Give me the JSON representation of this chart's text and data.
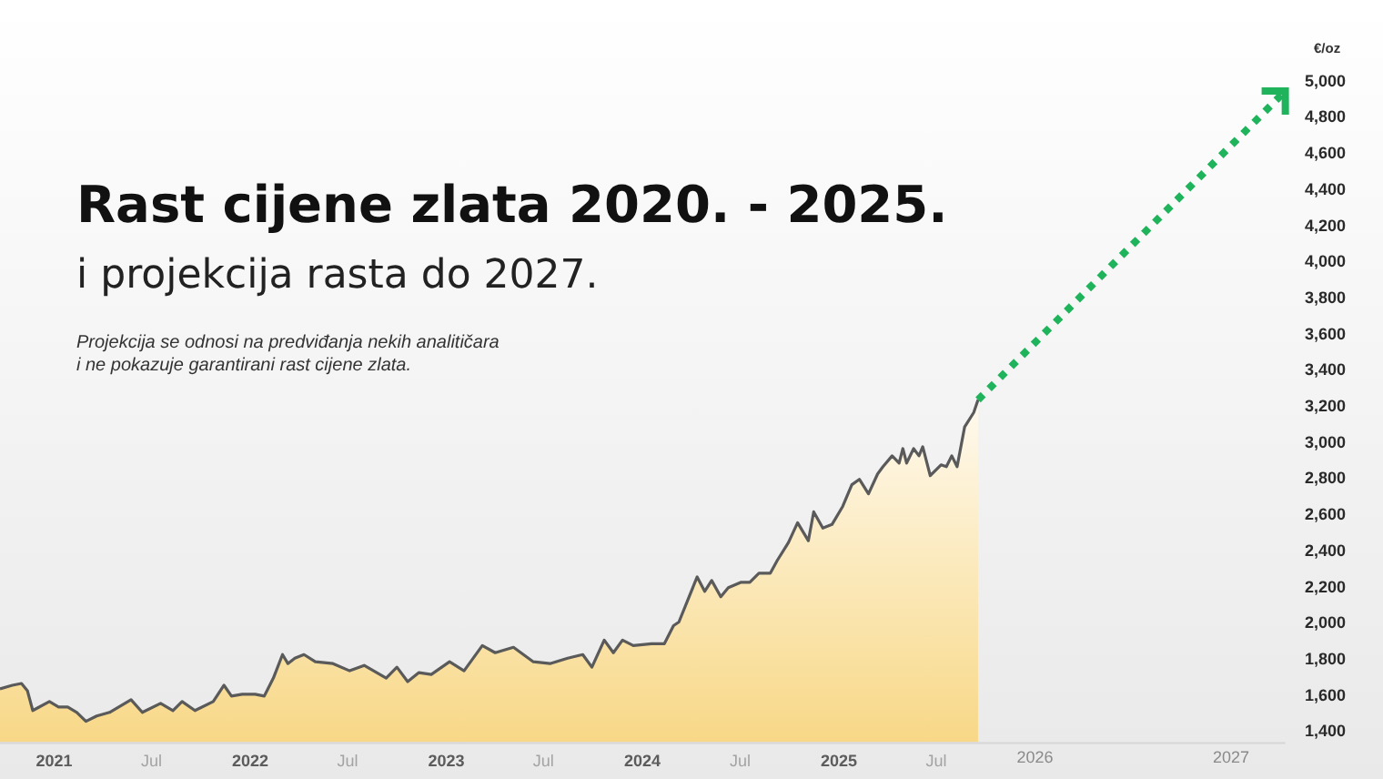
{
  "chart_data": {
    "type": "area",
    "title": "Rast cijene zlata 2020. - 2025.",
    "subtitle": "i projekcija rasta do 2027.",
    "ylabel": "€/oz",
    "annotations": [
      "Projekcija se odnosi na predviđanja nekih analitičara\ni ne pokazuje garantirani rast cijene zlata."
    ],
    "xlim": [
      "2020-09-22",
      "2027-04-12"
    ],
    "xticks": [
      {
        "value": "2021-01-01",
        "label": "2021"
      },
      {
        "value": "2021-07-01",
        "label": "Jul"
      },
      {
        "value": "2022-01-01",
        "label": "2022"
      },
      {
        "value": "2022-07-01",
        "label": "Jul"
      },
      {
        "value": "2023-01-01",
        "label": "2023"
      },
      {
        "value": "2023-07-01",
        "label": "Jul"
      },
      {
        "value": "2024-01-01",
        "label": "2024"
      },
      {
        "value": "2024-07-01",
        "label": "Jul"
      },
      {
        "value": "2025-01-01",
        "label": "2025"
      },
      {
        "value": "2025-07-01",
        "label": "Jul"
      },
      {
        "value": "2026-01-01",
        "label": "2026"
      },
      {
        "value": "2027-01-01",
        "label": "2027"
      }
    ],
    "ylim": [
      1345,
      5000
    ],
    "yticks": [
      {
        "value": 1400,
        "label": "1,400"
      },
      {
        "value": 1600,
        "label": "1,600"
      },
      {
        "value": 1800,
        "label": "1,800"
      },
      {
        "value": 2000,
        "label": "2,000"
      },
      {
        "value": 2200,
        "label": "2,200"
      },
      {
        "value": 2400,
        "label": "2,400"
      },
      {
        "value": 2600,
        "label": "2,600"
      },
      {
        "value": 2800,
        "label": "2,800"
      },
      {
        "value": 3000,
        "label": "3,000"
      },
      {
        "value": 3200,
        "label": "3,200"
      },
      {
        "value": 3400,
        "label": "3,400"
      },
      {
        "value": 3600,
        "label": "3,600"
      },
      {
        "value": 3800,
        "label": "3,800"
      },
      {
        "value": 4000,
        "label": "4,000"
      },
      {
        "value": 4200,
        "label": "4,200"
      },
      {
        "value": 4400,
        "label": "4,400"
      },
      {
        "value": 4600,
        "label": "4,600"
      },
      {
        "value": 4800,
        "label": "4,800"
      },
      {
        "value": 5000,
        "label": "5,000"
      }
    ],
    "series": [
      {
        "color": "#5a5a5a",
        "x": [
          "2020-09-22",
          "2020-10-15",
          "2020-11-01",
          "2020-11-12",
          "2020-11-22",
          "2020-12-23",
          "2021-01-09",
          "2021-01-26",
          "2021-02-12",
          "2021-03-01",
          "2021-03-21",
          "2021-04-14",
          "2021-05-24",
          "2021-06-14",
          "2021-07-18",
          "2021-08-10",
          "2021-08-27",
          "2021-09-20",
          "2021-10-24",
          "2021-11-13",
          "2021-11-27",
          "2021-12-17",
          "2022-01-10",
          "2022-01-27",
          "2022-02-13",
          "2022-03-02",
          "2022-03-12",
          "2022-03-25",
          "2022-04-11",
          "2022-05-02",
          "2022-06-04",
          "2022-07-05",
          "2022-08-01",
          "2022-09-11",
          "2022-10-01",
          "2022-10-21",
          "2022-11-11",
          "2022-12-04",
          "2023-01-07",
          "2023-02-03",
          "2023-03-09",
          "2023-04-02",
          "2023-05-06",
          "2023-06-12",
          "2023-07-13",
          "2023-08-15",
          "2023-09-12",
          "2023-09-29",
          "2023-10-22",
          "2023-11-08",
          "2023-11-25",
          "2023-12-15",
          "2024-01-18",
          "2024-02-11",
          "2024-02-28",
          "2024-03-09",
          "2024-04-12",
          "2024-04-26",
          "2024-05-09",
          "2024-05-26",
          "2024-06-09",
          "2024-07-03",
          "2024-07-19",
          "2024-08-05",
          "2024-08-26",
          "2024-09-08",
          "2024-09-29",
          "2024-10-16",
          "2024-11-05",
          "2024-11-15",
          "2024-12-02",
          "2024-12-19",
          "2025-01-08",
          "2025-01-25",
          "2025-02-08",
          "2025-02-25",
          "2025-03-14",
          "2025-03-24",
          "2025-04-10",
          "2025-04-23",
          "2025-04-30",
          "2025-05-07",
          "2025-05-20",
          "2025-05-30",
          "2025-06-06",
          "2025-06-20",
          "2025-07-10",
          "2025-07-20",
          "2025-07-30",
          "2025-08-09",
          "2025-08-23",
          "2025-09-09",
          "2025-09-17"
        ],
        "values": [
          1640,
          1660,
          1670,
          1630,
          1520,
          1570,
          1540,
          1540,
          1510,
          1460,
          1490,
          1510,
          1580,
          1510,
          1560,
          1520,
          1570,
          1520,
          1570,
          1660,
          1600,
          1610,
          1610,
          1600,
          1700,
          1830,
          1780,
          1810,
          1830,
          1790,
          1780,
          1740,
          1770,
          1700,
          1760,
          1680,
          1730,
          1720,
          1790,
          1740,
          1880,
          1840,
          1870,
          1790,
          1780,
          1810,
          1830,
          1760,
          1910,
          1840,
          1910,
          1880,
          1890,
          1890,
          1990,
          2010,
          2260,
          2180,
          2240,
          2150,
          2200,
          2230,
          2230,
          2280,
          2280,
          2350,
          2450,
          2560,
          2460,
          2620,
          2530,
          2550,
          2650,
          2770,
          2800,
          2720,
          2830,
          2870,
          2930,
          2890,
          2970,
          2890,
          2970,
          2930,
          2980,
          2820,
          2880,
          2870,
          2930,
          2870,
          3090,
          3170,
          3240
        ]
      },
      {
        "type": "line",
        "color": "#1fb35c",
        "line_style": "dotted",
        "x": [
          "2025-09-17",
          "2027-04-12"
        ],
        "values": [
          3240,
          4950
        ]
      }
    ]
  }
}
